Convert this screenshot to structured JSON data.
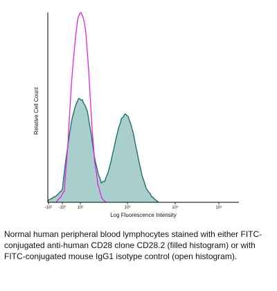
{
  "chart_data": {
    "type": "area",
    "ylabel": "Relative Cell Count",
    "xlabel": "Log Fluorescence Intensity",
    "scale": "log (biexponential near zero)",
    "xticks": [
      {
        "label": "-10¹",
        "value": -10
      },
      {
        "label": "-10⁰",
        "value": -1
      },
      {
        "label": "10²",
        "value": 100
      },
      {
        "label": "10³",
        "value": 1000
      },
      {
        "label": "10⁴",
        "value": 10000
      },
      {
        "label": "10⁵",
        "value": 100000
      }
    ],
    "series": [
      {
        "style": "filled",
        "color": "#1f6f6e",
        "fill": "#a8cfcb",
        "points": [
          [
            -40,
            0
          ],
          [
            -15,
            0.01
          ],
          [
            -5,
            0.03
          ],
          [
            -1,
            0.07
          ],
          [
            10,
            0.16
          ],
          [
            30,
            0.3
          ],
          [
            50,
            0.42
          ],
          [
            70,
            0.5
          ],
          [
            90,
            0.55
          ],
          [
            110,
            0.54
          ],
          [
            140,
            0.48
          ],
          [
            170,
            0.36
          ],
          [
            200,
            0.24
          ],
          [
            240,
            0.15
          ],
          [
            280,
            0.1
          ],
          [
            330,
            0.11
          ],
          [
            400,
            0.17
          ],
          [
            500,
            0.27
          ],
          [
            620,
            0.37
          ],
          [
            750,
            0.44
          ],
          [
            900,
            0.47
          ],
          [
            1050,
            0.45
          ],
          [
            1300,
            0.37
          ],
          [
            1600,
            0.26
          ],
          [
            2000,
            0.15
          ],
          [
            2500,
            0.07
          ],
          [
            3200,
            0.03
          ],
          [
            4500,
            0.0
          ]
        ]
      },
      {
        "style": "open",
        "color": "#e21ee2",
        "points": [
          [
            -5,
            0
          ],
          [
            10,
            0.06
          ],
          [
            30,
            0.3
          ],
          [
            50,
            0.62
          ],
          [
            70,
            0.85
          ],
          [
            85,
            0.97
          ],
          [
            100,
            1.0
          ],
          [
            115,
            0.97
          ],
          [
            130,
            0.9
          ],
          [
            150,
            0.7
          ],
          [
            175,
            0.42
          ],
          [
            200,
            0.22
          ],
          [
            240,
            0.08
          ],
          [
            290,
            0.02
          ],
          [
            350,
            0.0
          ]
        ]
      }
    ],
    "grid": false,
    "legend": "none"
  },
  "caption": "Normal human peripheral blood lymphocytes stained with either FITC-conjugated anti-human CD28 clone CD28.2 (filled histogram) or with FITC-conjugated mouse IgG1 isotype control (open histogram)."
}
